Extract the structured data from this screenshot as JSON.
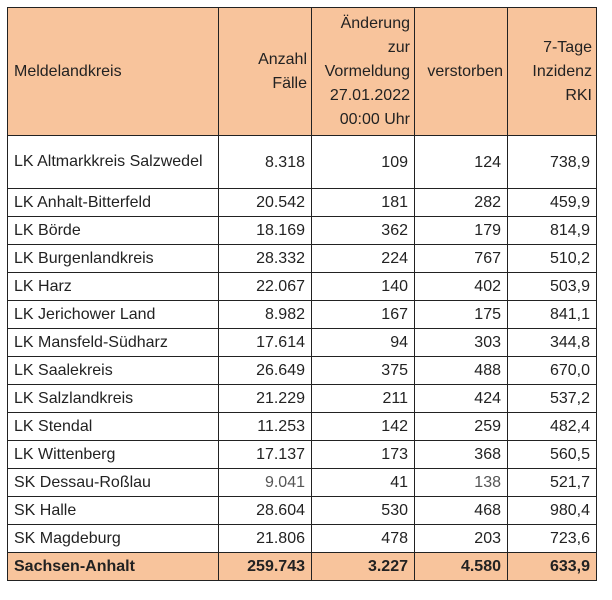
{
  "headers": {
    "kreis": "Meldelandkreis",
    "faelle": "Anzahl Fälle",
    "aenderung": "Änderung zur Vormeldung 27.01.2022 00:00 Uhr",
    "verstorben": "verstorben",
    "inzidenz": "7-Tage Inzidenz RKI"
  },
  "rows": [
    {
      "kreis": "LK Altmarkkreis Salzwedel",
      "faelle": "8.318",
      "aenderung": "109",
      "verstorben": "124",
      "inzidenz": "738,9"
    },
    {
      "kreis": "LK Anhalt-Bitterfeld",
      "faelle": "20.542",
      "aenderung": "181",
      "verstorben": "282",
      "inzidenz": "459,9"
    },
    {
      "kreis": "LK Börde",
      "faelle": "18.169",
      "aenderung": "362",
      "verstorben": "179",
      "inzidenz": "814,9"
    },
    {
      "kreis": "LK Burgenlandkreis",
      "faelle": "28.332",
      "aenderung": "224",
      "verstorben": "767",
      "inzidenz": "510,2"
    },
    {
      "kreis": "LK Harz",
      "faelle": "22.067",
      "aenderung": "140",
      "verstorben": "402",
      "inzidenz": "503,9"
    },
    {
      "kreis": "LK Jerichower Land",
      "faelle": "8.982",
      "aenderung": "167",
      "verstorben": "175",
      "inzidenz": "841,1"
    },
    {
      "kreis": "LK Mansfeld-Südharz",
      "faelle": "17.614",
      "aenderung": "94",
      "verstorben": "303",
      "inzidenz": "344,8"
    },
    {
      "kreis": "LK Saalekreis",
      "faelle": "26.649",
      "aenderung": "375",
      "verstorben": "488",
      "inzidenz": "670,0"
    },
    {
      "kreis": "LK Salzlandkreis",
      "faelle": "21.229",
      "aenderung": "211",
      "verstorben": "424",
      "inzidenz": "537,2"
    },
    {
      "kreis": "LK Stendal",
      "faelle": "11.253",
      "aenderung": "142",
      "verstorben": "259",
      "inzidenz": "482,4"
    },
    {
      "kreis": "LK Wittenberg",
      "faelle": "17.137",
      "aenderung": "173",
      "verstorben": "368",
      "inzidenz": "560,5"
    },
    {
      "kreis": "SK Dessau-Roßlau",
      "faelle": "9.041",
      "aenderung": "41",
      "verstorben": "138",
      "inzidenz": "521,7"
    },
    {
      "kreis": "SK Halle",
      "faelle": "28.604",
      "aenderung": "530",
      "verstorben": "468",
      "inzidenz": "980,4"
    },
    {
      "kreis": "SK Magdeburg",
      "faelle": "21.806",
      "aenderung": "478",
      "verstorben": "203",
      "inzidenz": "723,6"
    }
  ],
  "total": {
    "kreis": "Sachsen-Anhalt",
    "faelle": "259.743",
    "aenderung": "3.227",
    "verstorben": "4.580",
    "inzidenz": "633,9"
  },
  "colors": {
    "header_bg": "#f8c49c",
    "border": "#222222",
    "muted_text": "#555555"
  }
}
